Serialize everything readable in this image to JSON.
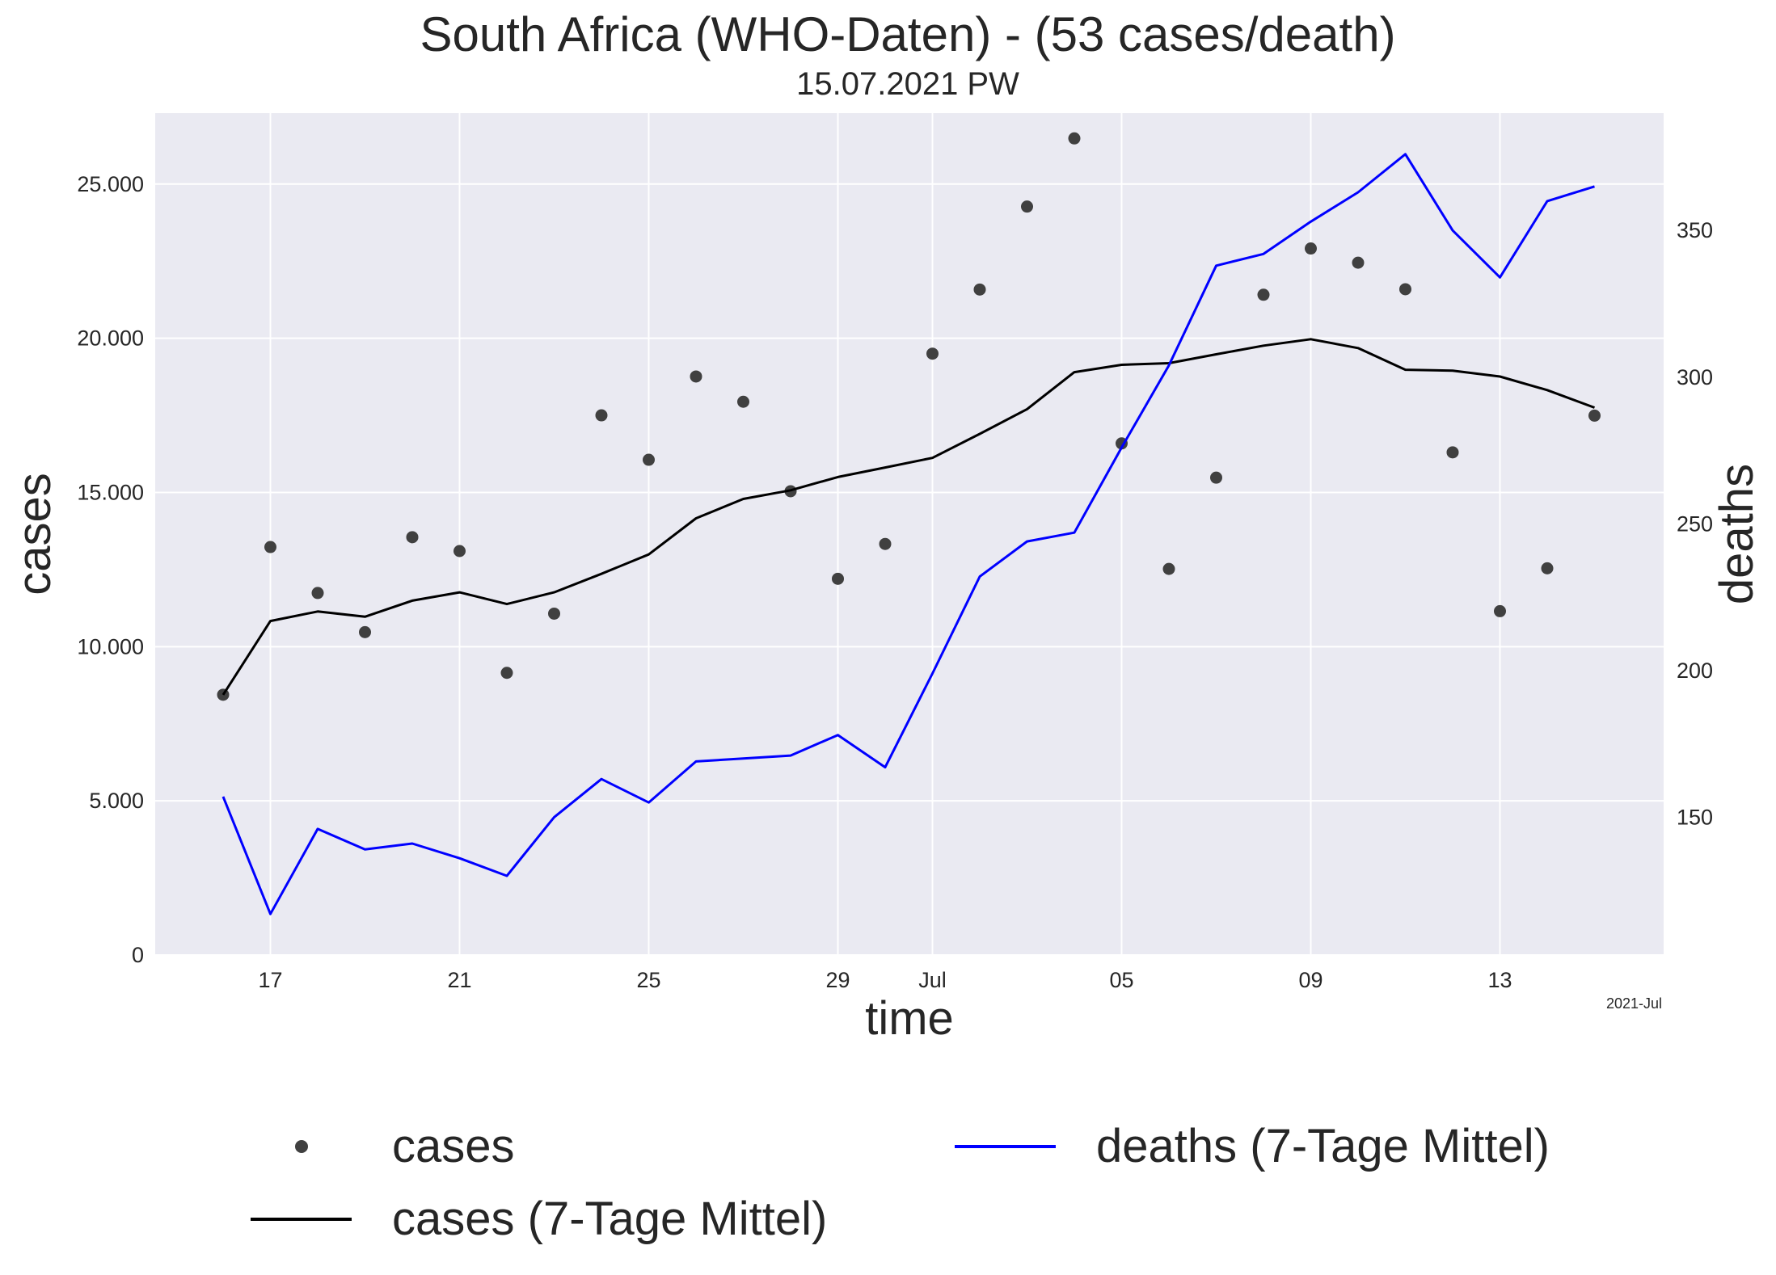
{
  "title": "South Africa (WHO-Daten) - (53 cases/death)",
  "subtitle": "15.07.2021 PW",
  "chart_data": {
    "type": "line",
    "x": [
      "2021-06-16",
      "2021-06-17",
      "2021-06-18",
      "2021-06-19",
      "2021-06-20",
      "2021-06-21",
      "2021-06-22",
      "2021-06-23",
      "2021-06-24",
      "2021-06-25",
      "2021-06-26",
      "2021-06-27",
      "2021-06-28",
      "2021-06-29",
      "2021-06-30",
      "2021-07-01",
      "2021-07-02",
      "2021-07-03",
      "2021-07-04",
      "2021-07-05",
      "2021-07-06",
      "2021-07-07",
      "2021-07-08",
      "2021-07-09",
      "2021-07-10",
      "2021-07-11",
      "2021-07-12",
      "2021-07-13",
      "2021-07-14",
      "2021-07-15"
    ],
    "xlabel": "time",
    "x_tick_labels": [
      "17",
      "21",
      "25",
      "29",
      "Jul",
      "05",
      "09",
      "13"
    ],
    "x_offset_label": "2021-Jul",
    "ylabel_left": "cases",
    "ylabel_right": "deaths",
    "ylim_left": [
      0,
      27300
    ],
    "ylim_right": [
      103,
      390
    ],
    "y_ticks_left": [
      0,
      5000,
      10000,
      15000,
      20000,
      25000
    ],
    "y_tick_labels_left": [
      "0",
      "5.000",
      "10.000",
      "15.000",
      "20.000",
      "25.000"
    ],
    "y_ticks_right": [
      150,
      200,
      250,
      300,
      350
    ],
    "y_tick_labels_right": [
      "150",
      "200",
      "250",
      "300",
      "350"
    ],
    "grid": true,
    "legend_placement": "below plot",
    "series": [
      {
        "name": "cases",
        "kind": "scatter",
        "axis": "left",
        "color": "#404040",
        "values": [
          8440,
          13230,
          11740,
          10470,
          13550,
          13100,
          9150,
          11070,
          17500,
          16060,
          18760,
          17940,
          15040,
          12200,
          13330,
          19500,
          21580,
          24270,
          26480,
          16590,
          12520,
          15480,
          21410,
          22910,
          22450,
          21590,
          16300,
          11150,
          12540,
          17490
        ]
      },
      {
        "name": "cases (7-Tage Mittel)",
        "kind": "line",
        "axis": "left",
        "color": "#000000",
        "values": [
          8440,
          10830,
          11140,
          10970,
          11490,
          11760,
          11380,
          11760,
          12360,
          12990,
          14160,
          14790,
          15070,
          15500,
          15810,
          16120,
          16900,
          17700,
          18900,
          19140,
          19190,
          19480,
          19760,
          19970,
          19680,
          18980,
          18950,
          18760,
          18320,
          17750
        ]
      },
      {
        "name": "deaths (7-Tage Mittel)",
        "kind": "line",
        "axis": "right",
        "color": "#0000ff",
        "values": [
          157,
          117,
          146,
          139,
          141,
          136,
          130,
          150,
          163,
          155,
          169,
          170,
          171,
          178,
          167,
          199,
          232,
          244,
          247,
          276,
          304,
          338,
          342,
          353,
          363,
          376,
          350,
          334,
          360,
          365
        ]
      }
    ]
  }
}
